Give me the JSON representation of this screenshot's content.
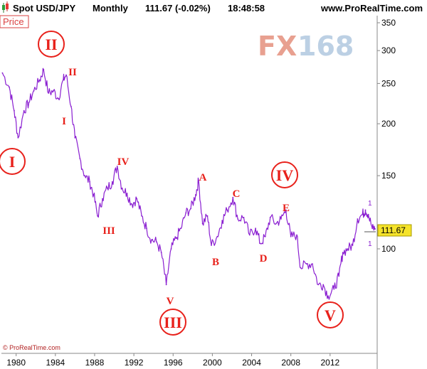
{
  "header": {
    "icon_name": "candlestick-icon",
    "symbol": "Spot USD/JPY",
    "period": "Monthly",
    "quote": "111.67 (-0.02%)",
    "time": "18:48:58",
    "site": "www.ProRealTime.com"
  },
  "price_tag": "Price",
  "watermark": {
    "fx": "FX",
    "num": "168"
  },
  "footer": "© ProRealTime.com",
  "last_price_label": "111.67",
  "colors": {
    "series": "#8a1fd1",
    "waves": "#e8211b",
    "last_price_bg": "#f5e32a",
    "watermark_fx": "#e8a090",
    "watermark_num": "#bcd0e4"
  },
  "waves": [
    {
      "label": "I",
      "circled": true
    },
    {
      "label": "II",
      "circled": true
    },
    {
      "label": "I",
      "circled": false
    },
    {
      "label": "II",
      "circled": false
    },
    {
      "label": "III",
      "circled": false
    },
    {
      "label": "IV",
      "circled": false
    },
    {
      "label": "V",
      "circled": false
    },
    {
      "label": "III",
      "circled": true
    },
    {
      "label": "A",
      "circled": false
    },
    {
      "label": "B",
      "circled": false
    },
    {
      "label": "C",
      "circled": false
    },
    {
      "label": "D",
      "circled": false
    },
    {
      "label": "IV",
      "circled": true
    },
    {
      "label": "E",
      "circled": false
    },
    {
      "label": "V",
      "circled": true
    }
  ],
  "right_markers": [
    "1",
    "1"
  ],
  "chart_data": {
    "type": "line",
    "title": "Spot USD/JPY Monthly",
    "xlabel": "",
    "ylabel": "",
    "log_scale": true,
    "ylim": [
      87,
      360
    ],
    "xlim": [
      1978.5,
      2016.8
    ],
    "y_ticks": [
      "350",
      "300",
      "250",
      "200",
      "150",
      "100"
    ],
    "x_ticks": [
      "1980",
      "1984",
      "1988",
      "1992",
      "1996",
      "2000",
      "2004",
      "2008",
      "2012"
    ],
    "grid": false,
    "legend": "none",
    "series": [
      {
        "name": "USD/JPY",
        "points": [
          [
            1978.6,
            265
          ],
          [
            1979.3,
            245
          ],
          [
            1979.8,
            215
          ],
          [
            1980.2,
            185
          ],
          [
            1980.8,
            215
          ],
          [
            1981.3,
            225
          ],
          [
            1981.8,
            240
          ],
          [
            1982.4,
            255
          ],
          [
            1982.8,
            270
          ],
          [
            1983.3,
            237
          ],
          [
            1983.8,
            240
          ],
          [
            1984.3,
            230
          ],
          [
            1984.8,
            255
          ],
          [
            1985.1,
            262
          ],
          [
            1985.6,
            220
          ],
          [
            1986.0,
            185
          ],
          [
            1986.5,
            165
          ],
          [
            1987.0,
            150
          ],
          [
            1987.5,
            145
          ],
          [
            1987.9,
            135
          ],
          [
            1988.3,
            120
          ],
          [
            1988.8,
            132
          ],
          [
            1989.3,
            140
          ],
          [
            1989.8,
            145
          ],
          [
            1990.3,
            158
          ],
          [
            1990.8,
            140
          ],
          [
            1991.3,
            136
          ],
          [
            1991.8,
            128
          ],
          [
            1992.3,
            132
          ],
          [
            1992.8,
            120
          ],
          [
            1993.3,
            112
          ],
          [
            1993.8,
            105
          ],
          [
            1994.3,
            104
          ],
          [
            1994.8,
            98
          ],
          [
            1995.3,
            82
          ],
          [
            1995.8,
            100
          ],
          [
            1996.3,
            106
          ],
          [
            1996.8,
            112
          ],
          [
            1997.3,
            122
          ],
          [
            1997.8,
            125
          ],
          [
            1998.3,
            135
          ],
          [
            1998.6,
            146
          ],
          [
            1999.0,
            115
          ],
          [
            1999.5,
            120
          ],
          [
            1999.9,
            102
          ],
          [
            2000.5,
            107
          ],
          [
            2001.0,
            117
          ],
          [
            2001.5,
            124
          ],
          [
            2002.1,
            133
          ],
          [
            2002.6,
            118
          ],
          [
            2003.2,
            119
          ],
          [
            2003.8,
            108
          ],
          [
            2004.4,
            112
          ],
          [
            2004.9,
            103
          ],
          [
            2005.4,
            107
          ],
          [
            2005.9,
            119
          ],
          [
            2006.5,
            115
          ],
          [
            2007.0,
            118
          ],
          [
            2007.5,
            124
          ],
          [
            2008.0,
            107
          ],
          [
            2008.6,
            108
          ],
          [
            2009.0,
            90
          ],
          [
            2009.6,
            92
          ],
          [
            2010.2,
            92
          ],
          [
            2010.8,
            82
          ],
          [
            2011.3,
            82
          ],
          [
            2011.8,
            77
          ],
          [
            2012.4,
            80
          ],
          [
            2012.9,
            86
          ],
          [
            2013.3,
            98
          ],
          [
            2013.8,
            100
          ],
          [
            2014.3,
            102
          ],
          [
            2014.8,
            118
          ],
          [
            2015.3,
            121
          ],
          [
            2015.6,
            124
          ],
          [
            2015.9,
            121
          ],
          [
            2016.3,
            112
          ],
          [
            2016.6,
            111.67
          ]
        ]
      }
    ]
  }
}
